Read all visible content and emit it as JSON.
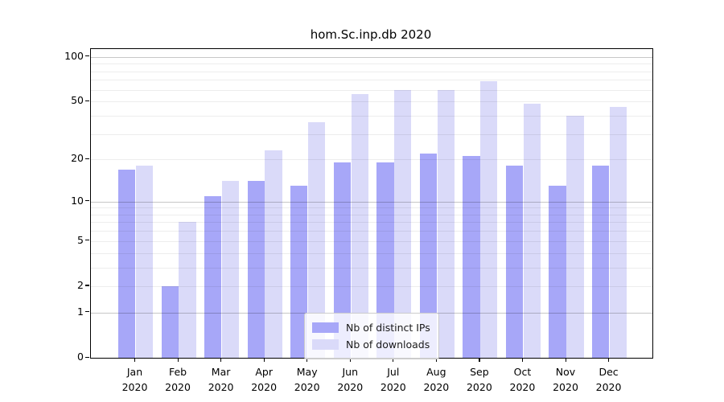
{
  "title": "hom.Sc.inp.db 2020",
  "chart_data": {
    "type": "bar",
    "title": "hom.Sc.inp.db 2020",
    "categories": [
      "Jan",
      "Feb",
      "Mar",
      "Apr",
      "May",
      "Jun",
      "Jul",
      "Aug",
      "Sep",
      "Oct",
      "Nov",
      "Dec"
    ],
    "category_year": "2020",
    "series": [
      {
        "name": "Nb of distinct IPs",
        "color": "#a7a7f8",
        "values": [
          17,
          2,
          11,
          14,
          13,
          19,
          19,
          22,
          21,
          18,
          13,
          18
        ]
      },
      {
        "name": "Nb of downloads",
        "color": "#dadaf9",
        "values": [
          18,
          7,
          14,
          23,
          36,
          56,
          60,
          60,
          69,
          48,
          40,
          46
        ]
      }
    ],
    "xlabel": "",
    "ylabel": "",
    "y_scale": "log1p",
    "ylim": [
      0,
      113
    ],
    "y_ticks": [
      100,
      50,
      20,
      10,
      5,
      2,
      1,
      0
    ],
    "gridlines": {
      "minor": [
        2,
        3,
        4,
        5,
        6,
        7,
        8,
        9,
        20,
        30,
        40,
        50,
        60,
        70,
        80,
        90
      ],
      "major": [
        1,
        10,
        100
      ]
    },
    "grid": true,
    "legend_position": "lower center"
  }
}
